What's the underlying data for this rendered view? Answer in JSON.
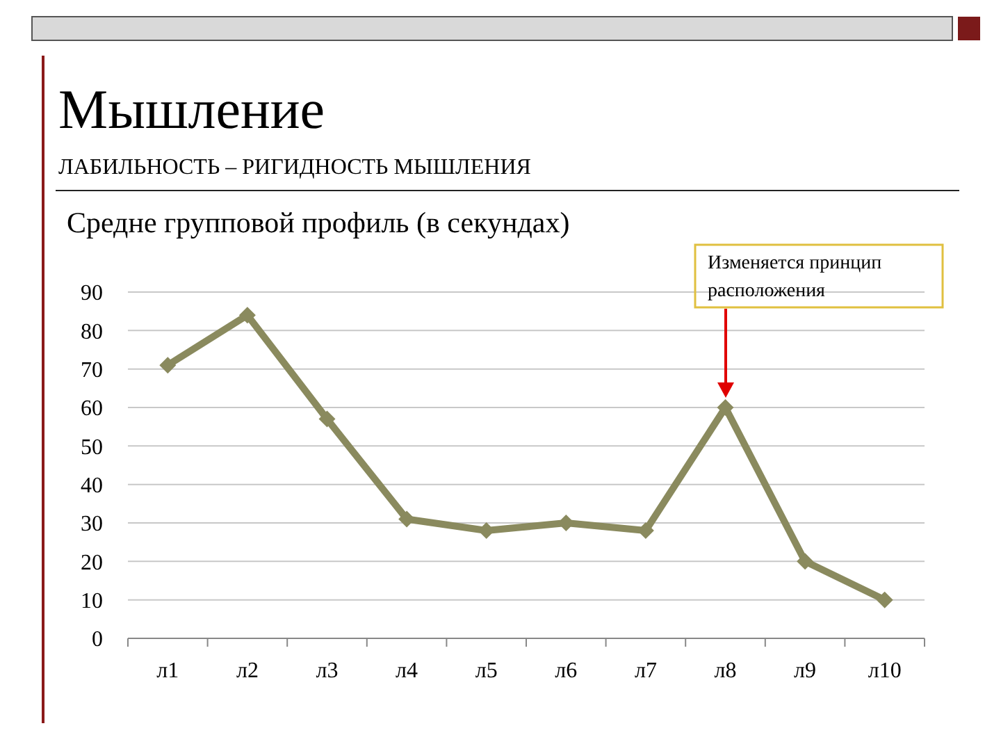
{
  "chart_data": {
    "type": "line",
    "title": "Мышление",
    "subtitle": "ЛАБИЛЬНОСТЬ – РИГИДНОСТЬ МЫШЛЕНИЯ",
    "xlabel": null,
    "annotations": [
      "Средне групповой  профиль  (в секундах)",
      "Изменяется принцип расположения"
    ],
    "categories": [
      "л1",
      "л2",
      "л3",
      "л4",
      "л5",
      "л6",
      "л7",
      "л8",
      "л9",
      "л10"
    ],
    "series": [
      {
        "color": "#8a8a5e",
        "values": [
          71,
          84,
          57,
          31,
          28,
          30,
          28,
          60,
          20,
          10
        ]
      }
    ],
    "ylim": [
      0,
      90
    ],
    "yticks": [
      0,
      10,
      20,
      30,
      40,
      50,
      60,
      70,
      80,
      90
    ],
    "grid": "y",
    "marker": "diamond",
    "line_style": "solid"
  }
}
